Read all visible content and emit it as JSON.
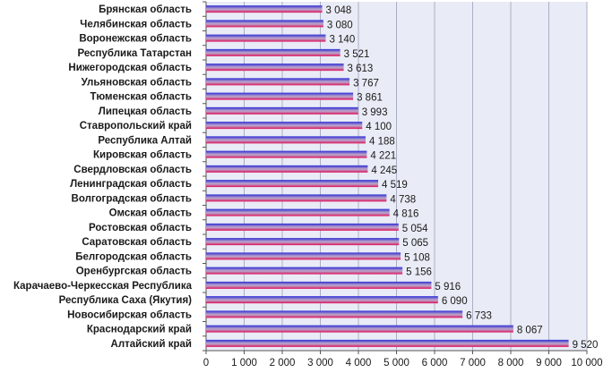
{
  "chart_data": {
    "type": "bar",
    "orientation": "horizontal",
    "categories": [
      "Брянская область",
      "Челябинская область",
      "Воронежская область",
      "Республика Татарстан",
      "Нижегородская область",
      "Ульяновская область",
      "Тюменская область",
      "Липецкая область",
      "Ставропольский край",
      "Республика Алтай",
      "Кировская область",
      "Свердловская область",
      "Ленинградская область",
      "Волгоградская область",
      "Омская область",
      "Ростовская область",
      "Саратовская область",
      "Белгородская область",
      "Оренбургская область",
      "Карачаево-Черкесская Республика",
      "Республика Саха (Якутия)",
      "Новосибирская область",
      "Краснодарский край",
      "Алтайский край"
    ],
    "values": [
      3048,
      3080,
      3140,
      3521,
      3613,
      3767,
      3861,
      3993,
      4100,
      4188,
      4221,
      4245,
      4519,
      4738,
      4816,
      5054,
      5065,
      5108,
      5156,
      5916,
      6090,
      6733,
      8067,
      9520
    ],
    "value_labels": [
      "3 048",
      "3 080",
      "3 140",
      "3 521",
      "3 613",
      "3 767",
      "3 861",
      "3 993",
      "4 100",
      "4 188",
      "4 221",
      "4 245",
      "4 519",
      "4 738",
      "4 816",
      "5 054",
      "5 065",
      "5 108",
      "5 156",
      "5 916",
      "6 090",
      "6 733",
      "8 067",
      "9 520"
    ],
    "x_ticks": [
      0,
      1000,
      2000,
      3000,
      4000,
      5000,
      6000,
      7000,
      8000,
      9000,
      10000
    ],
    "x_tick_labels": [
      "0",
      "1 000",
      "2 000",
      "3 000",
      "4 000",
      "5 000",
      "6 000",
      "7 000",
      "8 000",
      "9 000",
      "10 000"
    ],
    "xlim": [
      0,
      10000
    ],
    "title": "",
    "xlabel": "",
    "ylabel": "",
    "grid": "vertical",
    "legend": "none",
    "colors": {
      "bar_top": "#2b2bd6",
      "bar_bottom": "#e0105a",
      "bar_mid": "#b8a0c8",
      "plot_bg": "#e9ecf6",
      "grid": "#9aa0b8",
      "axis": "#555555"
    }
  }
}
